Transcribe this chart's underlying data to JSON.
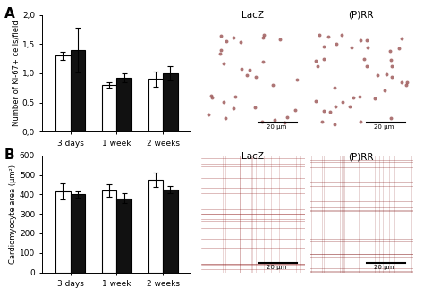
{
  "panel_A": {
    "title_label": "A",
    "ylabel": "Number of Ki-67+ cells/field",
    "ylim": [
      0,
      2.0
    ],
    "yticks": [
      0.0,
      0.5,
      1.0,
      1.5,
      2.0
    ],
    "ytick_labels": [
      "0,0",
      "0,5",
      "1,0",
      "1,5",
      "2,0"
    ],
    "categories": [
      "3 days",
      "1 week",
      "2 weeks"
    ],
    "white_bars": [
      1.3,
      0.8,
      0.9
    ],
    "black_bars": [
      1.4,
      0.92,
      1.0
    ],
    "white_errors": [
      0.07,
      0.05,
      0.13
    ],
    "black_errors": [
      0.38,
      0.08,
      0.12
    ]
  },
  "panel_B": {
    "title_label": "B",
    "ylabel": "Cardiomyocyte area (μm²)",
    "ylim": [
      0,
      600
    ],
    "yticks": [
      0,
      100,
      200,
      300,
      400,
      500,
      600
    ],
    "ytick_labels": [
      "0",
      "100",
      "200",
      "300",
      "400",
      "500",
      "600"
    ],
    "categories": [
      "3 days",
      "1 week",
      "2 weeks"
    ],
    "white_bars": [
      415,
      420,
      475
    ],
    "black_bars": [
      400,
      380,
      425
    ],
    "white_errors": [
      40,
      30,
      35
    ],
    "black_errors": [
      15,
      25,
      20
    ]
  },
  "bar_width": 0.32,
  "white_color": "#ffffff",
  "black_color": "#111111",
  "edge_color": "#000000",
  "fig_bg": "#ffffff",
  "img_A_LacZ_color": "#d4c4a0",
  "img_A_PRR_color": "#c8b890",
  "img_B_LacZ_color": "#c04040",
  "img_B_PRR_color": "#c03838",
  "lacZ_label": "LacZ",
  "prr_label": "(P)RR",
  "scale_bar_label": "20 μm",
  "panel_A_label": "A",
  "panel_B_label": "B"
}
